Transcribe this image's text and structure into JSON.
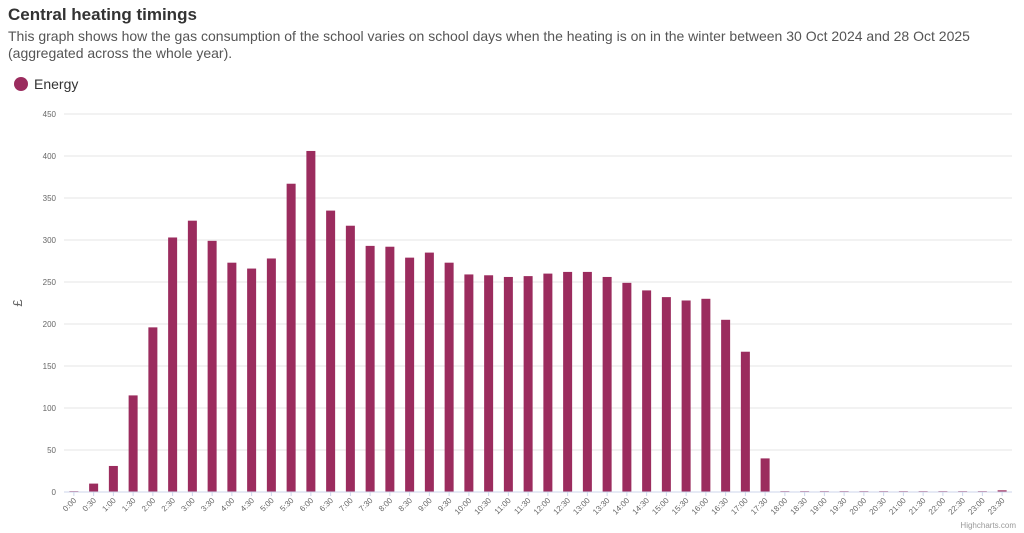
{
  "header": {
    "title": "Central heating timings",
    "subtitle": "This graph shows how the gas consumption of the school varies on school days when the heating is on in the winter between 30 Oct 2024 and 28 Oct 2025 (aggregated across the whole year)."
  },
  "legend": {
    "label": "Energy",
    "color": "#9b2c5e"
  },
  "credits": "Highcharts.com",
  "chart_data": {
    "type": "bar",
    "title": "Central heating timings",
    "ylabel": "£",
    "xlabel": "",
    "ylim": [
      0,
      450
    ],
    "yticks": [
      0,
      50,
      100,
      150,
      200,
      250,
      300,
      350,
      400,
      450
    ],
    "grid": true,
    "legend_position": "top-left",
    "categories": [
      "0:00",
      "0:30",
      "1:00",
      "1:30",
      "2:00",
      "2:30",
      "3:00",
      "3:30",
      "4:00",
      "4:30",
      "5:00",
      "5:30",
      "6:00",
      "6:30",
      "7:00",
      "7:30",
      "8:00",
      "8:30",
      "9:00",
      "9:30",
      "10:00",
      "10:30",
      "11:00",
      "11:30",
      "12:00",
      "12:30",
      "13:00",
      "13:30",
      "14:00",
      "14:30",
      "15:00",
      "15:30",
      "16:00",
      "16:30",
      "17:00",
      "17:30",
      "18:00",
      "18:30",
      "19:00",
      "19:30",
      "20:00",
      "20:30",
      "21:00",
      "21:30",
      "22:00",
      "22:30",
      "23:00",
      "23:30"
    ],
    "series": [
      {
        "name": "Energy",
        "color": "#9b2c5e",
        "values": [
          1,
          10,
          31,
          115,
          196,
          303,
          323,
          299,
          273,
          266,
          278,
          367,
          406,
          335,
          317,
          293,
          292,
          279,
          285,
          273,
          259,
          258,
          256,
          257,
          260,
          262,
          262,
          256,
          249,
          240,
          232,
          228,
          230,
          205,
          167,
          40,
          1,
          1,
          1,
          1,
          1,
          1,
          1,
          1,
          1,
          1,
          1,
          2
        ]
      }
    ]
  }
}
